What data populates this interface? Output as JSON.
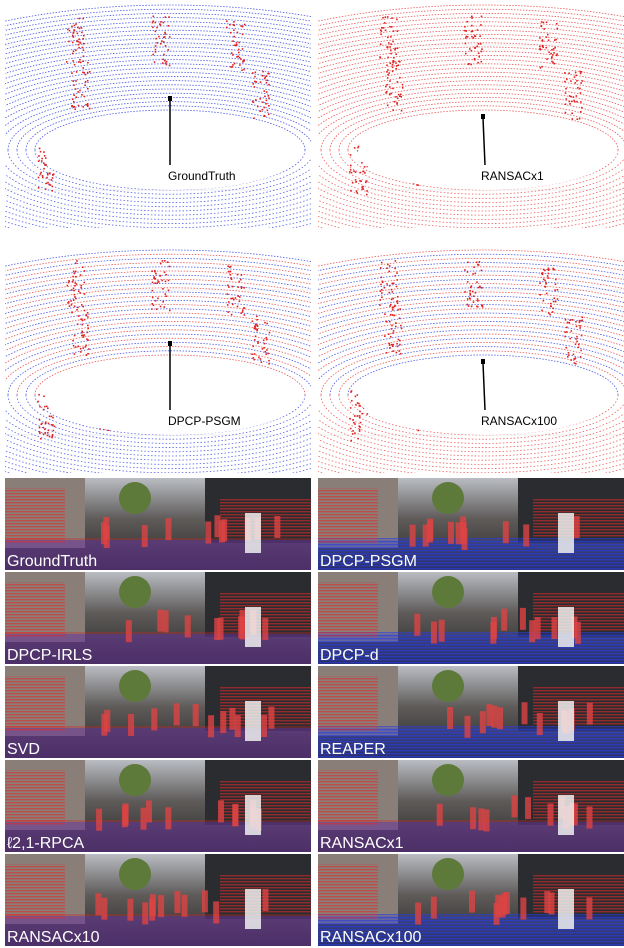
{
  "point_clouds": [
    {
      "label": "GroundTruth"
    },
    {
      "label": "RANSACx1"
    },
    {
      "label": "DPCP-PSGM"
    },
    {
      "label": "RANSACx100"
    }
  ],
  "images": [
    {
      "label": "GroundTruth"
    },
    {
      "label": "DPCP-PSGM"
    },
    {
      "label": "DPCP-IRLS"
    },
    {
      "label": "DPCP-d"
    },
    {
      "label": "SVD"
    },
    {
      "label": "REAPER"
    },
    {
      "label": "ℓ2,1-RPCA"
    },
    {
      "label": "RANSACx1"
    },
    {
      "label": "RANSACx10"
    },
    {
      "label": "RANSACx100"
    }
  ]
}
